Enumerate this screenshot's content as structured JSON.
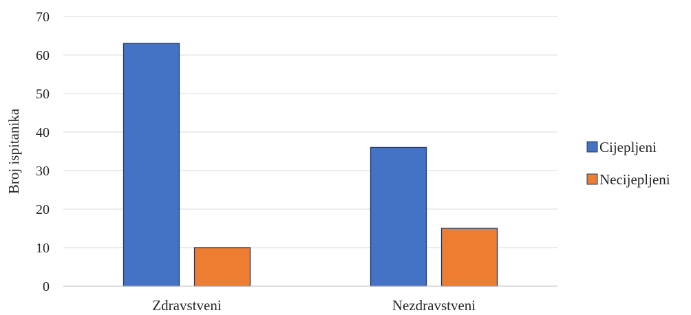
{
  "chart_data": {
    "type": "bar",
    "categories": [
      "Zdravstveni",
      "Nezdravstveni"
    ],
    "series": [
      {
        "name": "Cijepljeni",
        "values": [
          63,
          36
        ],
        "color": "#4472C4"
      },
      {
        "name": "Necijepljeni",
        "values": [
          10,
          15
        ],
        "color": "#ED7D31"
      }
    ],
    "xlabel": "",
    "ylabel": "Broj ispitanika",
    "ylim": [
      0,
      70
    ],
    "yticks": [
      "0",
      "10",
      "20",
      "30",
      "40",
      "50",
      "60",
      "70"
    ],
    "grid": true,
    "legend_position": "right"
  }
}
